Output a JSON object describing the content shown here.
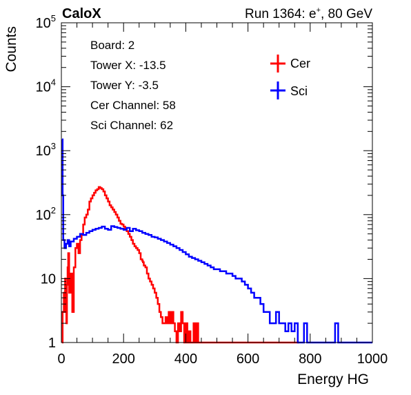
{
  "chart_data": {
    "type": "line",
    "title_left": "CaloX",
    "title_right": {
      "prefix": "Run 1364: e",
      "sup": "+",
      "suffix": ", 80 GeV"
    },
    "xlabel": "Energy HG",
    "ylabel": "Counts",
    "xlim": [
      0,
      1000
    ],
    "ylim": [
      1,
      100000
    ],
    "yscale": "log",
    "x_ticks": [
      "0",
      "200",
      "400",
      "600",
      "800",
      "1000"
    ],
    "y_ticks": [
      {
        "value": 1,
        "label": "1"
      },
      {
        "value": 10,
        "label": "10"
      },
      {
        "value": 100,
        "base": "10",
        "exp": "2"
      },
      {
        "value": 1000,
        "base": "10",
        "exp": "3"
      },
      {
        "value": 10000,
        "base": "10",
        "exp": "4"
      },
      {
        "value": 100000,
        "base": "10",
        "exp": "5"
      }
    ],
    "info_box": [
      "Board: 2",
      "Tower X: -13.5",
      "Tower Y: -3.5",
      "Cer Channel: 58",
      "Sci Channel: 62"
    ],
    "legend_placement": "top-right",
    "series": [
      {
        "name": "Cer",
        "color": "#ff0000",
        "x": [
          2,
          4,
          8,
          10,
          12,
          14,
          16,
          18,
          20,
          22,
          25,
          30,
          35,
          40,
          45,
          50,
          55,
          60,
          65,
          70,
          75,
          80,
          85,
          90,
          95,
          100,
          105,
          110,
          115,
          120,
          125,
          130,
          135,
          140,
          145,
          150,
          155,
          160,
          165,
          170,
          175,
          180,
          185,
          190,
          195,
          200,
          205,
          210,
          215,
          220,
          225,
          230,
          235,
          240,
          245,
          250,
          255,
          260,
          262,
          265,
          270,
          275,
          280,
          285,
          290,
          295,
          300,
          305,
          310,
          315,
          320,
          325,
          330,
          335,
          340,
          345,
          350,
          355,
          360,
          365,
          370,
          375,
          380,
          385,
          390,
          395,
          400,
          405,
          410,
          415,
          420,
          425,
          430,
          435,
          440,
          445,
          450,
          455,
          460,
          465,
          470,
          475,
          480,
          485,
          490,
          495,
          500,
          505,
          510,
          540,
          560,
          580,
          600,
          640,
          660,
          700,
          720,
          730,
          760
        ],
        "y": [
          1,
          3,
          6,
          3,
          10,
          4,
          2,
          8,
          15,
          25,
          6,
          12,
          3,
          15,
          30,
          35,
          25,
          40,
          50,
          70,
          90,
          100,
          120,
          160,
          180,
          200,
          220,
          240,
          250,
          270,
          260,
          250,
          230,
          200,
          180,
          160,
          140,
          130,
          120,
          110,
          100,
          90,
          80,
          72,
          70,
          65,
          60,
          55,
          50,
          45,
          40,
          35,
          32,
          30,
          28,
          25,
          20,
          19,
          18,
          16,
          15,
          12,
          10,
          9,
          8,
          7,
          6,
          5,
          4,
          3,
          2.5,
          2,
          2,
          2.5,
          2,
          3,
          2,
          3,
          2,
          1.5,
          1,
          2,
          1.5,
          3,
          2,
          1,
          2,
          1,
          1.5,
          1,
          1,
          2,
          1,
          2,
          1,
          1,
          1,
          1,
          1,
          1,
          1,
          1,
          1,
          1,
          1,
          1,
          1,
          1,
          1,
          1,
          1,
          1,
          1,
          1,
          1,
          1,
          1,
          1,
          1
        ]
      },
      {
        "name": "Sci",
        "color": "#0000ff",
        "x": [
          2,
          4,
          6,
          10,
          15,
          20,
          25,
          30,
          40,
          50,
          60,
          70,
          80,
          90,
          100,
          110,
          120,
          130,
          140,
          150,
          160,
          170,
          180,
          190,
          200,
          210,
          220,
          230,
          240,
          250,
          260,
          270,
          280,
          290,
          300,
          310,
          320,
          330,
          340,
          350,
          360,
          370,
          380,
          390,
          400,
          410,
          420,
          430,
          440,
          450,
          460,
          470,
          480,
          490,
          500,
          510,
          520,
          530,
          540,
          550,
          560,
          570,
          580,
          590,
          600,
          610,
          620,
          630,
          640,
          650,
          660,
          670,
          680,
          690,
          700,
          710,
          720,
          730,
          740,
          750,
          760,
          770,
          780,
          790,
          800,
          810,
          820,
          830,
          840,
          850,
          860,
          870,
          880,
          890,
          900,
          910,
          920,
          930,
          940,
          950,
          960,
          970,
          980,
          990,
          1000
        ],
        "y": [
          1500,
          200,
          40,
          30,
          35,
          40,
          32,
          38,
          42,
          45,
          50,
          48,
          52,
          55,
          58,
          60,
          62,
          65,
          60,
          58,
          66,
          64,
          62,
          60,
          58,
          62,
          55,
          60,
          57,
          55,
          52,
          50,
          48,
          45,
          44,
          42,
          40,
          38,
          36,
          34,
          32,
          30,
          28,
          26,
          24,
          22,
          21,
          20,
          19,
          18,
          17,
          16,
          15,
          14,
          14,
          13,
          13,
          12,
          12,
          11,
          10,
          10,
          9,
          8,
          7,
          6,
          5,
          5,
          4,
          3,
          3,
          2,
          2,
          3,
          2,
          2,
          1.5,
          2,
          1.5,
          2,
          1,
          1,
          2,
          1,
          1,
          1,
          1,
          1,
          1,
          1,
          1,
          1,
          2,
          1,
          1,
          1,
          1,
          1,
          1,
          1,
          1,
          1,
          1,
          1,
          1
        ]
      }
    ]
  }
}
